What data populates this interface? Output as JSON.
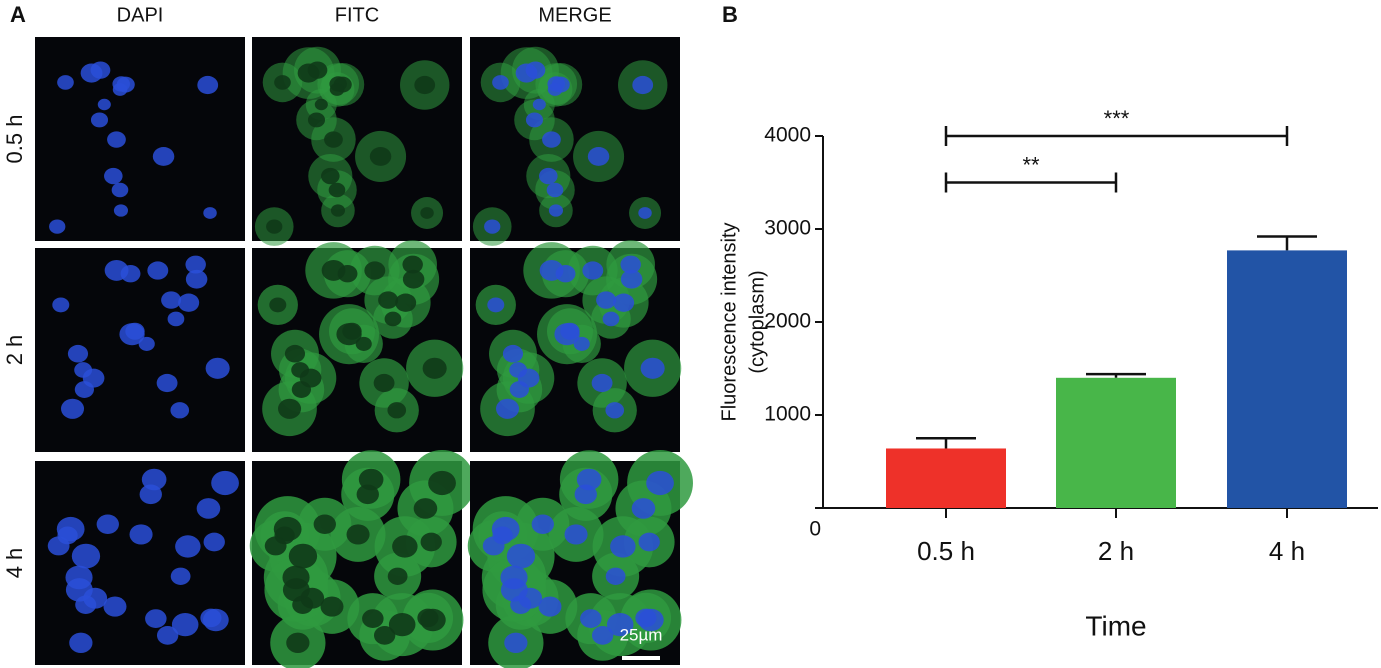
{
  "figure": {
    "panel_a_label": "A",
    "panel_b_label": "B",
    "columns": [
      "DAPI",
      "FITC",
      "MERGE"
    ],
    "rows": [
      "0.5 h",
      "2 h",
      "4 h"
    ],
    "scale_bar": "25µm"
  },
  "chart_data": {
    "type": "bar",
    "categories": [
      "0.5 h",
      "2 h",
      "4 h"
    ],
    "values": [
      640,
      1400,
      2770
    ],
    "errors": [
      110,
      40,
      150
    ],
    "colors": [
      "#ee3129",
      "#48b649",
      "#2254a6"
    ],
    "ylim": [
      0,
      4000
    ],
    "yticks": [
      0,
      1000,
      2000,
      3000,
      4000
    ],
    "ylabel": [
      "Fluorescence intensity",
      "(cytoplasm)"
    ],
    "xlabel": "Time",
    "significance": [
      {
        "from": "0.5 h",
        "to": "2 h",
        "y": 3500,
        "label": "**"
      },
      {
        "from": "0.5 h",
        "to": "4 h",
        "y": 4000,
        "label": "***"
      }
    ]
  }
}
